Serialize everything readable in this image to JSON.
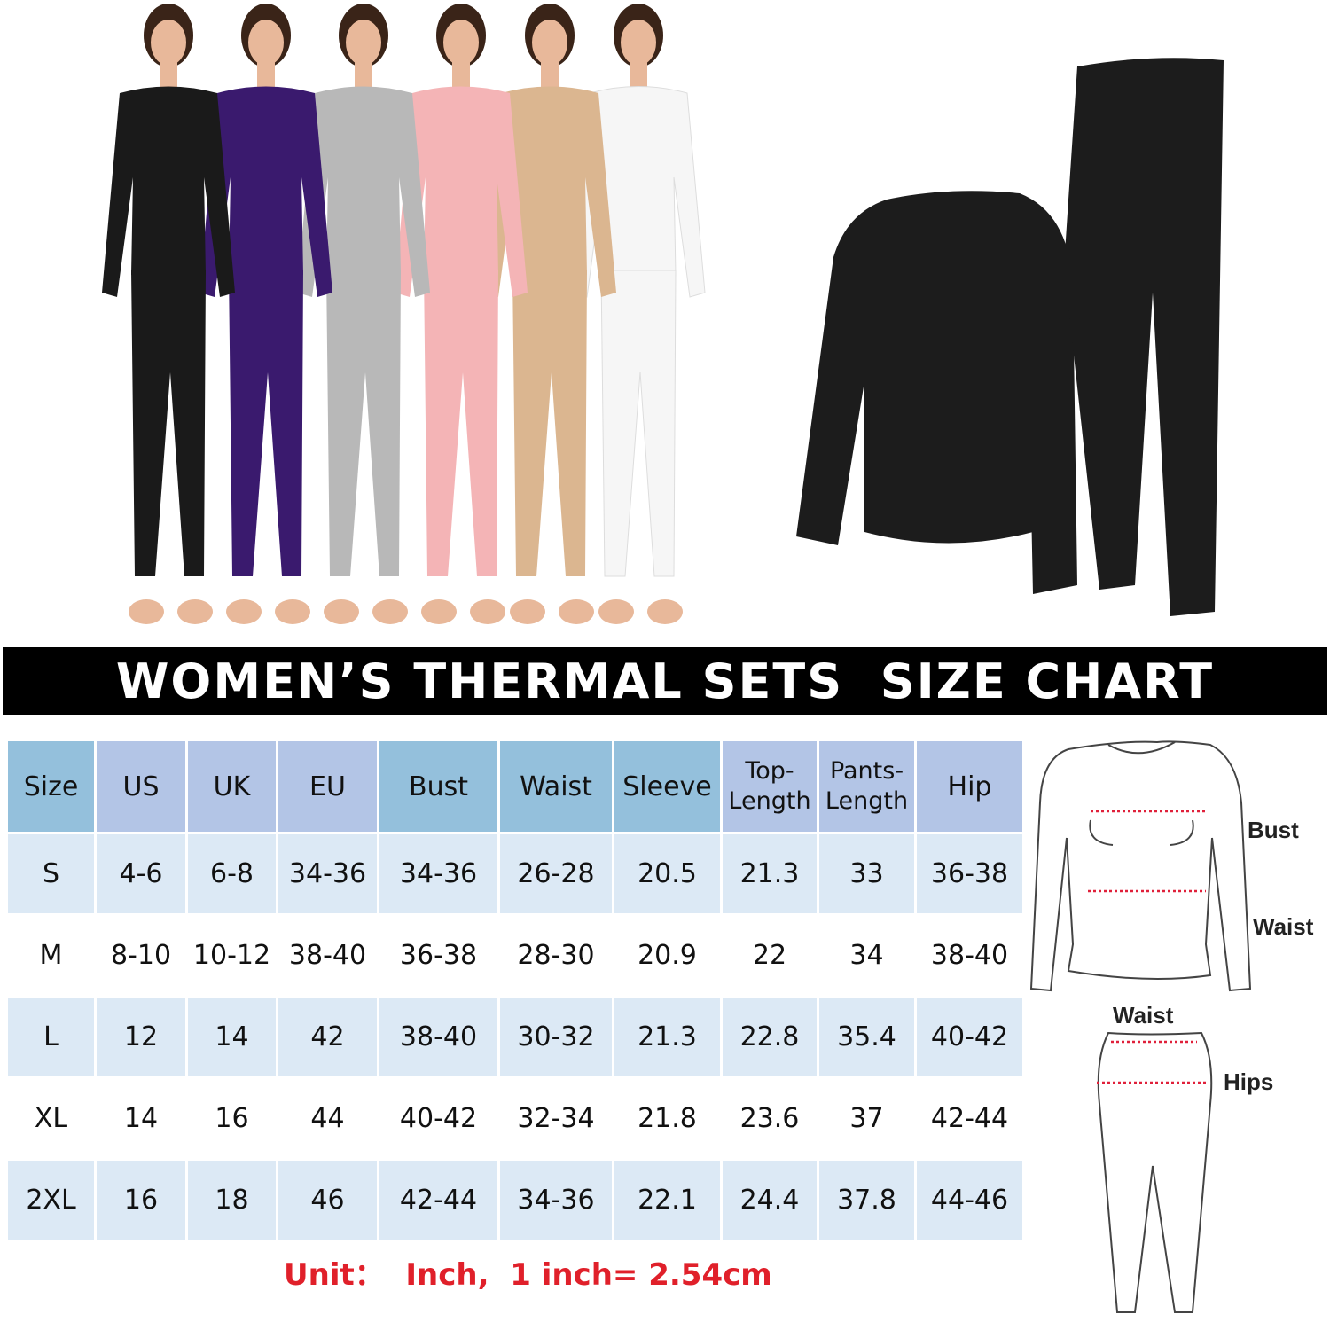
{
  "title": "WOMEN’S THERMAL SETS  SIZE CHART",
  "model_colors": [
    "#1a1a1a",
    "#3a1a6e",
    "#b8b8b8",
    "#f4b4b6",
    "#dbb690",
    "#f6f6f6"
  ],
  "flatlay_color": "#1c1c1c",
  "table": {
    "headers": [
      {
        "label": "Size",
        "tone": "blue"
      },
      {
        "label": "US",
        "tone": "lav"
      },
      {
        "label": "UK",
        "tone": "lav"
      },
      {
        "label": "EU",
        "tone": "lav"
      },
      {
        "label": "Bust",
        "tone": "blue"
      },
      {
        "label": "Waist",
        "tone": "blue"
      },
      {
        "label": "Sleeve",
        "tone": "blue"
      },
      {
        "label": "Top-\nLength",
        "tone": "lav"
      },
      {
        "label": "Pants-\nLength",
        "tone": "lav"
      },
      {
        "label": "Hip",
        "tone": "lav"
      }
    ],
    "rows": [
      [
        "S",
        "4-6",
        "6-8",
        "34-36",
        "34-36",
        "26-28",
        "20.5",
        "21.3",
        "33",
        "36-38"
      ],
      [
        "M",
        "8-10",
        "10-12",
        "38-40",
        "36-38",
        "28-30",
        "20.9",
        "22",
        "34",
        "38-40"
      ],
      [
        "L",
        "12",
        "14",
        "42",
        "38-40",
        "30-32",
        "21.3",
        "22.8",
        "35.4",
        "40-42"
      ],
      [
        "XL",
        "14",
        "16",
        "44",
        "40-42",
        "32-34",
        "21.8",
        "23.6",
        "37",
        "42-44"
      ],
      [
        "2XL",
        "16",
        "18",
        "46",
        "42-44",
        "34-36",
        "22.1",
        "24.4",
        "37.8",
        "44-46"
      ]
    ]
  },
  "unit_note": "Unit：  Inch,  1 inch= 2.54cm",
  "diagram": {
    "top_bust": "Bust",
    "top_waist": "Waist",
    "pants_waist": "Waist",
    "pants_hips": "Hips"
  }
}
